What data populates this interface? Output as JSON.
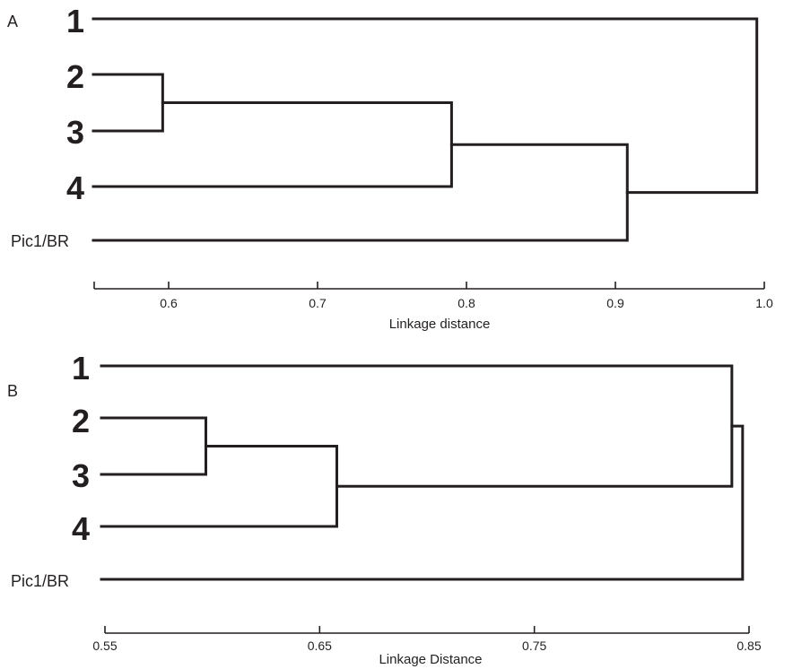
{
  "chart_data": [
    {
      "type": "dendrogram",
      "panel_label": "A",
      "xlabel": "Linkage distance",
      "xlim": [
        0.55,
        1.0
      ],
      "ticks": [
        0.55,
        0.6,
        0.7,
        0.8,
        0.9,
        1.0
      ],
      "tick_labels": [
        "",
        "0.6",
        "0.7",
        "0.8",
        "0.9",
        "1.0"
      ],
      "leaves": [
        "1",
        "2",
        "3",
        "4",
        "Pic1/BR"
      ],
      "merges": [
        {
          "a": "2",
          "b": "3",
          "height": 0.596
        },
        {
          "a": "2+3",
          "b": "4",
          "height": 0.79
        },
        {
          "a": "2+3+4",
          "b": "Pic1/BR",
          "height": 0.908
        },
        {
          "a": "1",
          "b": "2+3+4+Pic1/BR",
          "height": 0.995
        }
      ]
    },
    {
      "type": "dendrogram",
      "panel_label": "B",
      "xlabel": "Linkage Distance",
      "xlim": [
        0.55,
        0.85
      ],
      "ticks": [
        0.55,
        0.65,
        0.75,
        0.85
      ],
      "tick_labels": [
        "0.55",
        "0.65",
        "0.75",
        "0.85"
      ],
      "leaves": [
        "1",
        "2",
        "3",
        "4",
        "Pic1/BR"
      ],
      "merges": [
        {
          "a": "2",
          "b": "3",
          "height": 0.597
        },
        {
          "a": "2+3",
          "b": "4",
          "height": 0.658
        },
        {
          "a": "1",
          "b": "2+3+4",
          "height": 0.842
        },
        {
          "a": "1+2+3+4",
          "b": "Pic1/BR",
          "height": 0.847
        }
      ]
    }
  ]
}
